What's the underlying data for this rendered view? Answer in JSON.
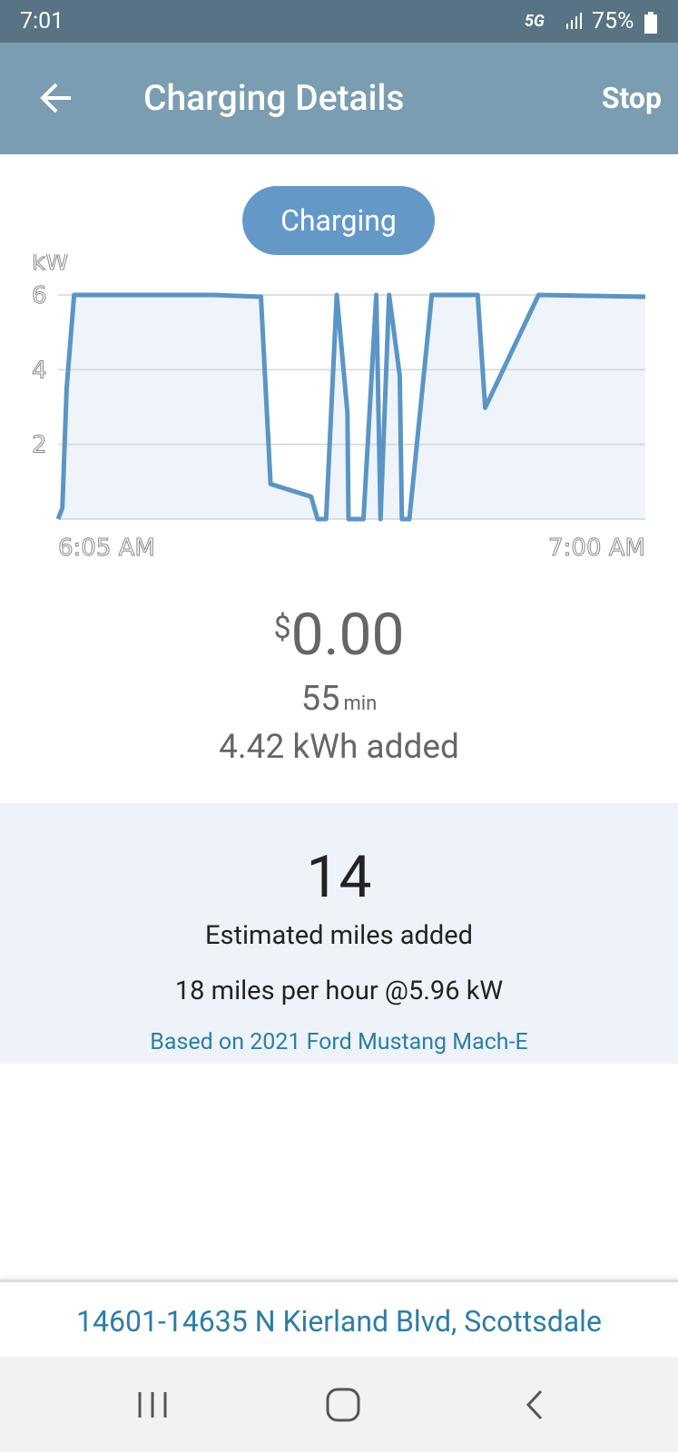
{
  "status_bar": {
    "time": "7:01",
    "network": "5G",
    "battery": "75%"
  },
  "header": {
    "title": "Charging Details",
    "action": "Stop"
  },
  "status_pill": "Charging",
  "chart_data": {
    "type": "line",
    "y_label": "kW",
    "x": [
      0,
      0.4,
      0.8,
      1.5,
      14.5,
      19.0,
      19.9,
      23.7,
      24.3,
      25.1,
      26.1,
      27.1,
      27.2,
      28.6,
      29.8,
      30.2,
      31.0,
      32.0,
      32.2,
      32.9,
      35.0,
      39.3,
      40.0,
      45.0,
      55
    ],
    "values": [
      0,
      0.3,
      3.5,
      6,
      6,
      5.95,
      0.94,
      0.6,
      0,
      0,
      6,
      2.85,
      0,
      0,
      6,
      0,
      6,
      3.84,
      0,
      0,
      6,
      6,
      2.98,
      6,
      5.95
    ],
    "color": "#5b95c5",
    "fill": "#eef4fa",
    "xlim": [
      0,
      55
    ],
    "xticks": [
      {
        "value": 0,
        "label": "6:05 AM"
      },
      {
        "value": 55,
        "label": "7:00 AM"
      }
    ],
    "ylim": [
      0,
      6
    ],
    "yticks": [
      2,
      4,
      6
    ],
    "grid": true
  },
  "summary": {
    "currency": "$",
    "amount": "0.00",
    "duration": "55",
    "duration_unit": "min",
    "energy": "4.42 kWh added"
  },
  "estimate": {
    "miles": "14",
    "label": "Estimated miles added",
    "rate": "18 miles per hour @5.96 kW",
    "vehicle": "Based on 2021 Ford Mustang Mach-E"
  },
  "footer": {
    "address": "14601-14635 N Kierland Blvd, Scottsdale"
  }
}
